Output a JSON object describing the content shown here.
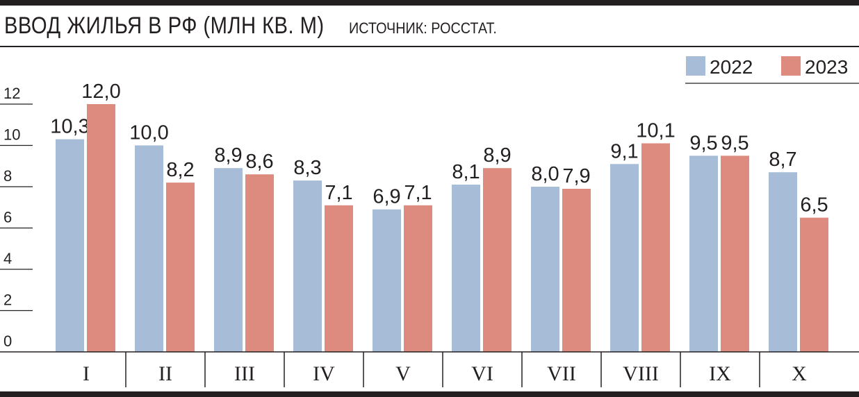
{
  "header": {
    "title": "ВВОД ЖИЛЬЯ В РФ (МЛН КВ. М)",
    "source": "ИСТОЧНИК: РОССТАТ."
  },
  "colors": {
    "series_2022": "#a7bcd6",
    "series_2023": "#dd8b7e",
    "ink": "#231f20"
  },
  "chart_data": {
    "type": "bar",
    "categories": [
      "I",
      "II",
      "III",
      "IV",
      "V",
      "VI",
      "VII",
      "VIII",
      "IX",
      "X"
    ],
    "series": [
      {
        "name": "2022",
        "values": [
          10.3,
          10.0,
          8.9,
          8.3,
          6.9,
          8.1,
          8.0,
          9.1,
          9.5,
          8.7
        ],
        "labels": [
          "10,3",
          "10,0",
          "8,9",
          "8,3",
          "6,9",
          "8,1",
          "8,0",
          "9,1",
          "9,5",
          "8,7"
        ]
      },
      {
        "name": "2023",
        "values": [
          12.0,
          8.2,
          8.6,
          7.1,
          7.1,
          8.9,
          7.9,
          10.1,
          9.5,
          6.5
        ],
        "labels": [
          "12,0",
          "8,2",
          "8,6",
          "7,1",
          "7,1",
          "8,9",
          "7,9",
          "10,1",
          "9,5",
          "6,5"
        ]
      }
    ],
    "yticks": [
      0,
      2,
      4,
      6,
      8,
      10,
      12
    ],
    "ylim": [
      0,
      12
    ],
    "legend_position": "top-right",
    "grid": false
  }
}
